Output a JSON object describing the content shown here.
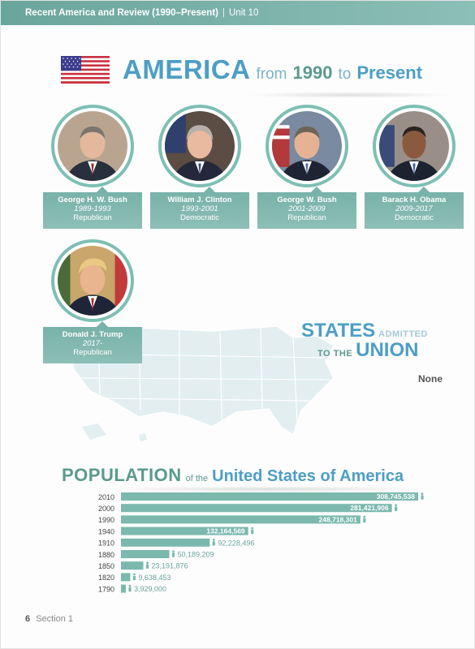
{
  "header": {
    "title": "Recent America and Review (1990–Present)",
    "separator": "|",
    "unit": "Unit 10"
  },
  "main_title": {
    "word1": "AMERICA",
    "word2": "from",
    "word3": "1990",
    "word4": "to",
    "word5": "Present"
  },
  "presidents": [
    {
      "name": "George H. W. Bush",
      "years": "1989-1993",
      "party": "Republican"
    },
    {
      "name": "William J. Clinton",
      "years": "1993-2001",
      "party": "Democratic"
    },
    {
      "name": "George W. Bush",
      "years": "2001-2009",
      "party": "Republican"
    },
    {
      "name": "Barack H. Obama",
      "years": "2009-2017",
      "party": "Democratic"
    },
    {
      "name": "Donald J. Trump",
      "years": "2017-",
      "party": "Republican"
    }
  ],
  "states_admitted": {
    "word1": "STATES",
    "word2": "ADMITTED",
    "word3": "TO THE",
    "word4": "UNION",
    "value": "None"
  },
  "population": {
    "title1": "POPULATION",
    "title2": "of the",
    "title3": "United States of America"
  },
  "chart_data": {
    "type": "bar",
    "orientation": "horizontal",
    "categories": [
      "2010",
      "2000",
      "1990",
      "1940",
      "1910",
      "1880",
      "1850",
      "1820",
      "1790"
    ],
    "values": [
      308745538,
      281421906,
      248718301,
      132164569,
      92228496,
      50189209,
      23191876,
      9638453,
      3929000
    ],
    "value_labels": [
      "308,745,538",
      "281,421,906",
      "248,718,301",
      "132,164,569",
      "92,228,496",
      "50,189,209",
      "23,191,876",
      "9,638,453",
      "3,929,000"
    ],
    "title": "",
    "xlabel": "",
    "ylabel": "",
    "color": "#7bb8ad",
    "label_color_inside": "#ffffff",
    "label_color_outside": "#6aa59c"
  },
  "footer": {
    "page": "6",
    "section": "Section 1"
  }
}
